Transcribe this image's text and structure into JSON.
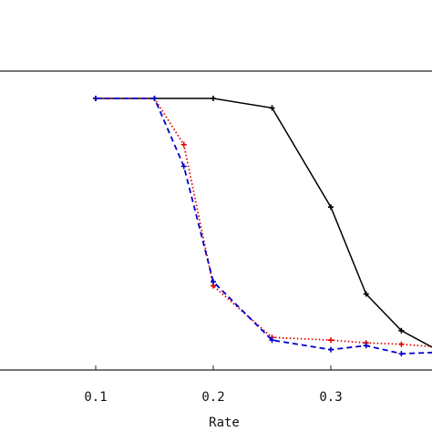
{
  "chart_data": {
    "type": "line",
    "title": "",
    "xlabel": "Rate",
    "ylabel": "",
    "xlim": [
      0.0,
      0.39
    ],
    "ylim": [
      0.0,
      1.1
    ],
    "x_ticks": [
      {
        "value": 0.1,
        "label": "0.1"
      },
      {
        "value": 0.2,
        "label": "0.2"
      },
      {
        "value": 0.3,
        "label": "0.3"
      }
    ],
    "grid": false,
    "legend": "none",
    "series": [
      {
        "color": "#000000",
        "line_style": "solid",
        "marker": "plus",
        "x": [
          0.1,
          0.15,
          0.2,
          0.25,
          0.3,
          0.33,
          0.36,
          0.39
        ],
        "y": [
          1.0,
          1.0,
          1.0,
          0.965,
          0.6,
          0.28,
          0.145,
          0.075
        ]
      },
      {
        "color": "#e00000",
        "line_style": "dotted",
        "marker": "plus",
        "x": [
          0.1,
          0.15,
          0.175,
          0.2,
          0.25,
          0.3,
          0.33,
          0.36,
          0.39
        ],
        "y": [
          1.0,
          1.0,
          0.83,
          0.31,
          0.12,
          0.11,
          0.1,
          0.095,
          0.085
        ]
      },
      {
        "color": "#0000cc",
        "line_style": "dashed",
        "marker": "plus",
        "x": [
          0.1,
          0.15,
          0.175,
          0.2,
          0.25,
          0.3,
          0.33,
          0.36,
          0.39
        ],
        "y": [
          1.0,
          1.0,
          0.75,
          0.325,
          0.11,
          0.075,
          0.09,
          0.06,
          0.065
        ]
      }
    ]
  }
}
